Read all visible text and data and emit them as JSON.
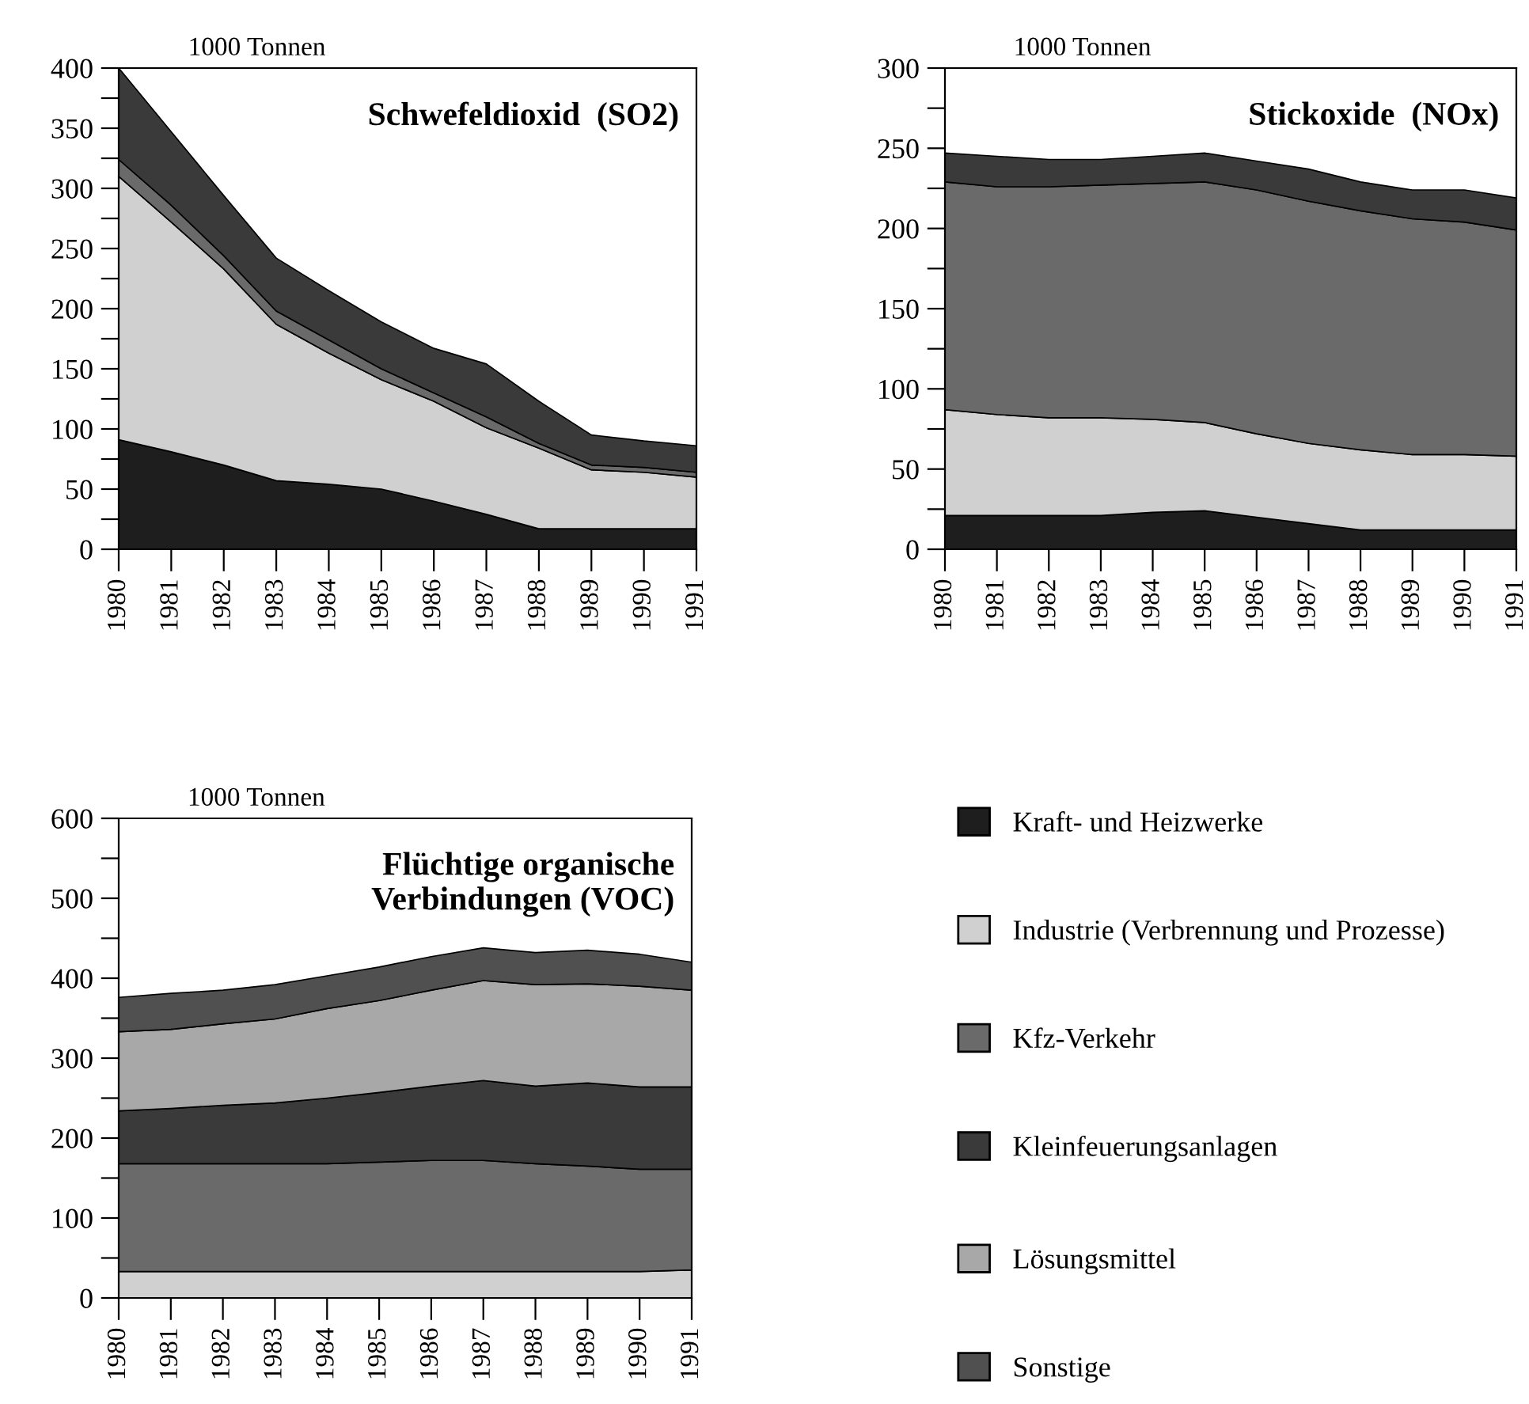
{
  "chart_data": [
    {
      "type": "area",
      "stacked": true,
      "title": "Schwefeldioxid  (SO2)",
      "ylabel": "1000 Tonnen",
      "legend": "bottom right",
      "x": [
        1980,
        1981,
        1982,
        1983,
        1984,
        1985,
        1986,
        1987,
        1988,
        1989,
        1990,
        1991
      ],
      "xlim": [
        1980,
        1991
      ],
      "xticks": [
        1980,
        1981,
        1982,
        1983,
        1984,
        1985,
        1986,
        1987,
        1988,
        1989,
        1990,
        1991
      ],
      "ylim": [
        0,
        400
      ],
      "yticks": [
        0,
        {
          "value": 25,
          "label": null
        },
        50,
        {
          "value": 75,
          "label": null
        },
        100,
        {
          "value": 125,
          "label": null
        },
        150,
        {
          "value": 175,
          "label": null
        },
        200,
        {
          "value": 225,
          "label": null
        },
        250,
        {
          "value": 275,
          "label": null
        },
        300,
        {
          "value": 325,
          "label": null
        },
        350,
        {
          "value": 375,
          "label": null
        },
        400
      ],
      "series": [
        {
          "name": "Kraft- und Heizwerke",
          "color": "#1e1e1e",
          "values": [
            91,
            81,
            70,
            57,
            54,
            50,
            40,
            29,
            17,
            17,
            17,
            17
          ]
        },
        {
          "name": "Industrie (Verbrennung und Prozesse)",
          "color": "#d0d0d0",
          "values": [
            219,
            191,
            163,
            130,
            109,
            91,
            83,
            72,
            67,
            49,
            47,
            43
          ]
        },
        {
          "name": "Kfz-Verkehr",
          "color": "#6a6a6a",
          "values": [
            14,
            14,
            11,
            11,
            11,
            9,
            7,
            9,
            4,
            4,
            4,
            4
          ]
        },
        {
          "name": "Kleinfeuerungsanlagen",
          "color": "#3a3a3a",
          "values": [
            76,
            61,
            50,
            44,
            41,
            39,
            37,
            44,
            35,
            25,
            22,
            22
          ]
        }
      ]
    },
    {
      "type": "area",
      "stacked": true,
      "title": "Stickoxide  (NOx)",
      "ylabel": "1000 Tonnen",
      "x": [
        1980,
        1981,
        1982,
        1983,
        1984,
        1985,
        1986,
        1987,
        1988,
        1989,
        1990,
        1991
      ],
      "xlim": [
        1980,
        1991
      ],
      "xticks": [
        1980,
        1981,
        1982,
        1983,
        1984,
        1985,
        1986,
        1987,
        1988,
        1989,
        1990,
        1991
      ],
      "ylim": [
        0,
        300
      ],
      "yticks": [
        0,
        {
          "value": 25,
          "label": null
        },
        50,
        {
          "value": 75,
          "label": null
        },
        100,
        {
          "value": 125,
          "label": null
        },
        150,
        {
          "value": 175,
          "label": null
        },
        200,
        {
          "value": 225,
          "label": null
        },
        250,
        {
          "value": 275,
          "label": null
        },
        300
      ],
      "series": [
        {
          "name": "Kraft- und Heizwerke",
          "color": "#1e1e1e",
          "values": [
            21,
            21,
            21,
            21,
            23,
            24,
            20,
            16,
            12,
            12,
            12,
            12
          ]
        },
        {
          "name": "Industrie (Verbrennung und Prozesse)",
          "color": "#d0d0d0",
          "values": [
            66,
            63,
            61,
            61,
            58,
            55,
            52,
            50,
            50,
            47,
            47,
            46
          ]
        },
        {
          "name": "Kfz-Verkehr",
          "color": "#6a6a6a",
          "values": [
            142,
            142,
            144,
            145,
            147,
            150,
            152,
            151,
            149,
            147,
            145,
            141
          ]
        },
        {
          "name": "Kleinfeuerungsanlagen",
          "color": "#3a3a3a",
          "values": [
            18,
            19,
            17,
            16,
            17,
            18,
            18,
            20,
            18,
            18,
            20,
            20
          ]
        }
      ]
    },
    {
      "type": "area",
      "stacked": true,
      "title": "Flüchtige organische\nVerbindungen (VOC)",
      "ylabel": "1000 Tonnen",
      "legend": "right",
      "x": [
        1980,
        1981,
        1982,
        1983,
        1984,
        1985,
        1986,
        1987,
        1988,
        1989,
        1990,
        1991
      ],
      "xlim": [
        1980,
        1991
      ],
      "xticks": [
        1980,
        1981,
        1982,
        1983,
        1984,
        1985,
        1986,
        1987,
        1988,
        1989,
        1990,
        1991
      ],
      "ylim": [
        0,
        600
      ],
      "yticks": [
        0,
        {
          "value": 50,
          "label": null
        },
        100,
        {
          "value": 150,
          "label": null
        },
        200,
        {
          "value": 250,
          "label": null
        },
        300,
        {
          "value": 350,
          "label": null
        },
        400,
        {
          "value": 450,
          "label": null
        },
        500,
        {
          "value": 550,
          "label": null
        },
        600
      ],
      "series": [
        {
          "name": "Industrie (Verbrennung und Prozesse)",
          "color": "#d0d0d0",
          "values": [
            33,
            33,
            33,
            33,
            33,
            33,
            33,
            33,
            33,
            33,
            33,
            35
          ]
        },
        {
          "name": "Kfz-Verkehr",
          "color": "#6a6a6a",
          "values": [
            135,
            135,
            135,
            135,
            135,
            137,
            139,
            139,
            135,
            132,
            128,
            126
          ]
        },
        {
          "name": "Kleinfeuerungsanlagen",
          "color": "#3a3a3a",
          "values": [
            66,
            69,
            73,
            76,
            82,
            87,
            93,
            100,
            97,
            104,
            103,
            103
          ]
        },
        {
          "name": "Lösungsmittel",
          "color": "#a8a8a8",
          "values": [
            99,
            99,
            102,
            105,
            112,
            115,
            120,
            125,
            127,
            124,
            126,
            121
          ]
        },
        {
          "name": "Sonstige",
          "color": "#505050",
          "values": [
            43,
            45,
            42,
            43,
            41,
            42,
            42,
            41,
            40,
            42,
            40,
            35
          ]
        }
      ]
    }
  ]
}
